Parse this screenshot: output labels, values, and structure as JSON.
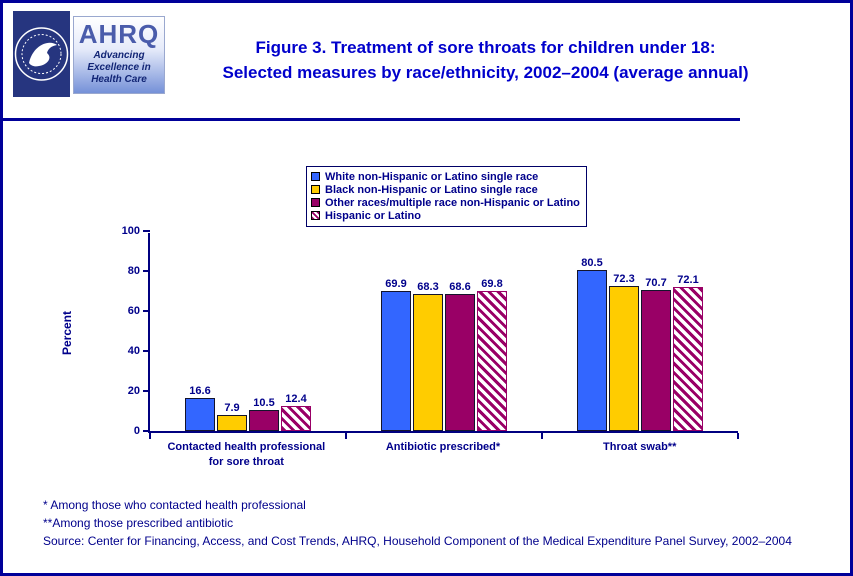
{
  "header": {
    "title_line1": "Figure 3. Treatment of sore throats for children under 18:",
    "title_line2": "Selected measures by race/ethnicity, 2002–2004 (average annual)",
    "logos": {
      "hhs_name": "HHS seal",
      "ahrq_name": "AHRQ",
      "ahrq_tagline_line1": "Advancing",
      "ahrq_tagline_line2": "Excellence in",
      "ahrq_tagline_line3": "Health Care"
    }
  },
  "chart_data": {
    "type": "bar",
    "title": "Figure 3. Treatment of sore throats for children under 18: Selected measures by race/ethnicity, 2002–2004 (average annual)",
    "xlabel": "",
    "ylabel": "Percent",
    "ylim": [
      0,
      100
    ],
    "yticks": [
      0,
      20,
      40,
      60,
      80,
      100
    ],
    "grid": false,
    "legend_position": "top",
    "categories": [
      "Contacted health professional for sore throat",
      "Antibiotic prescribed*",
      "Throat swab**"
    ],
    "series": [
      {
        "name": "White non-Hispanic or Latino single race",
        "color": "#3366FF",
        "pattern": "solid",
        "values": [
          16.6,
          69.9,
          80.5
        ]
      },
      {
        "name": "Black non-Hispanic or Latino single race",
        "color": "#FFCC00",
        "pattern": "solid",
        "values": [
          7.9,
          68.3,
          72.3
        ]
      },
      {
        "name": "Other races/multiple race non-Hispanic or Latino",
        "color": "#990066",
        "pattern": "solid",
        "values": [
          10.5,
          68.6,
          70.7
        ]
      },
      {
        "name": "Hispanic or Latino",
        "color": "#990066",
        "pattern": "diagonal-hatch",
        "values": [
          12.4,
          69.8,
          72.1
        ]
      }
    ]
  },
  "footnotes": [
    "* Among those who contacted health professional",
    "**Among those prescribed antibiotic",
    "Source: Center for Financing, Access, and Cost Trends, AHRQ, Household Component of the Medical Expenditure Panel Survey, 2002–2004"
  ],
  "colors": {
    "page_border": "#000099",
    "title_text": "#0000CC",
    "axis_text": "#00008B",
    "axis_line": "#000080"
  }
}
